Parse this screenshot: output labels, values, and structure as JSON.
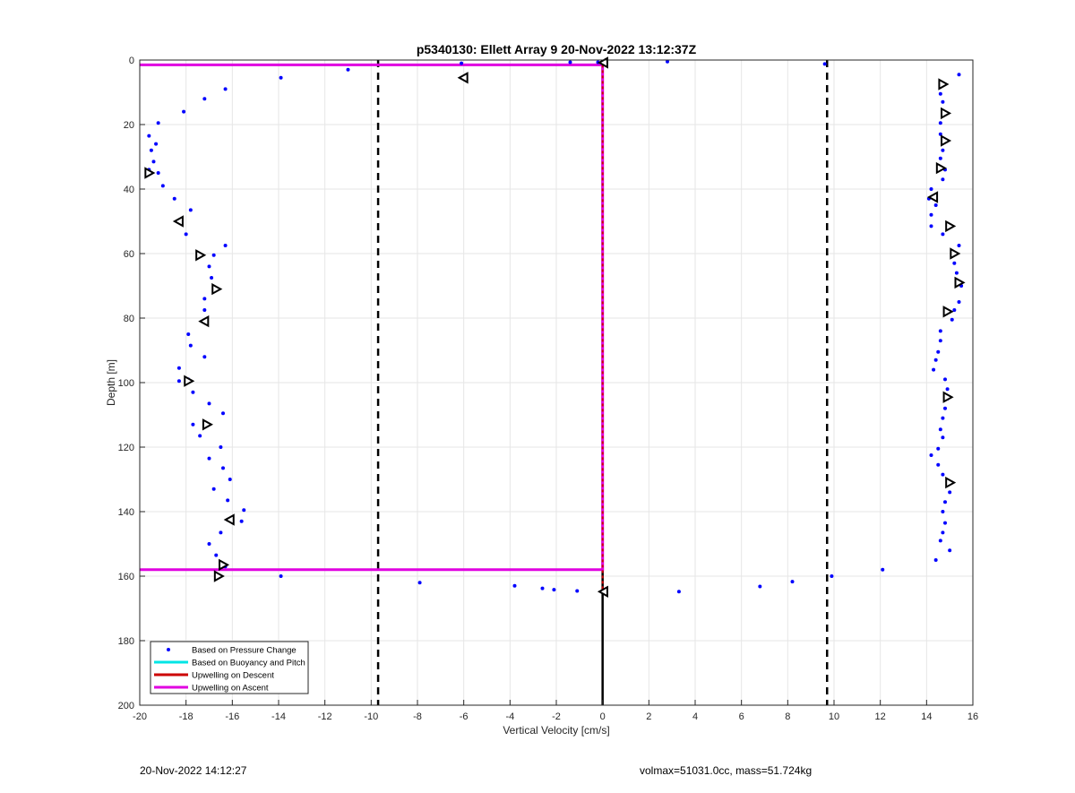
{
  "footer": {
    "left": "20-Nov-2022 14:12:27",
    "right": "volmax=51031.0cc, mass=51.724kg"
  },
  "chart_data": {
    "type": "scatter",
    "title": "p5340130: Ellett Array 9 20-Nov-2022 13:12:37Z",
    "xlabel": "Vertical Velocity [cm/s]",
    "ylabel": "Depth [m]",
    "xlim": [
      -20,
      16
    ],
    "ylim": [
      0,
      200
    ],
    "y_reversed": true,
    "grid": true,
    "xticks": [
      "-20",
      "-18",
      "-16",
      "-14",
      "-12",
      "-10",
      "-8",
      "-6",
      "-4",
      "-2",
      "0",
      "2",
      "4",
      "6",
      "8",
      "10",
      "12",
      "14",
      "16"
    ],
    "yticks": [
      "0",
      "20",
      "40",
      "60",
      "80",
      "100",
      "120",
      "140",
      "160",
      "180",
      "200"
    ],
    "legend": {
      "placement": "bottom-left",
      "entries": [
        {
          "label": "Based on Pressure Change",
          "color": "#0000ff",
          "style": "dot"
        },
        {
          "label": "Based on Buoyancy and Pitch",
          "color": "#00e5e5",
          "style": "line"
        },
        {
          "label": "Upwelling on Descent",
          "color": "#cc0000",
          "style": "line"
        },
        {
          "label": "Upwelling on Ascent",
          "color": "#e000e0",
          "style": "line"
        }
      ]
    },
    "reference_lines": {
      "dashed_x": [
        -9.7,
        9.7
      ],
      "black_vertical_x": 0
    },
    "series": [
      {
        "name": "Based on Pressure Change",
        "color": "#0000ff",
        "points": [
          [
            -16.3,
            9
          ],
          [
            -17.2,
            12
          ],
          [
            -18.1,
            16
          ],
          [
            -19.2,
            19.5
          ],
          [
            -19.3,
            26
          ],
          [
            -19.6,
            23.5
          ],
          [
            -19.5,
            28
          ],
          [
            -19.4,
            31.5
          ],
          [
            -19.6,
            34
          ],
          [
            -19.2,
            35
          ],
          [
            -19,
            39
          ],
          [
            -18.5,
            43
          ],
          [
            -17.8,
            46.5
          ],
          [
            -18.3,
            50
          ],
          [
            -18,
            54
          ],
          [
            -16.3,
            57.5
          ],
          [
            -17.4,
            60.5
          ],
          [
            -16.8,
            60.5
          ],
          [
            -17,
            64
          ],
          [
            -16.9,
            67.5
          ],
          [
            -16.7,
            71
          ],
          [
            -17.2,
            74
          ],
          [
            -17.2,
            77.5
          ],
          [
            -17.2,
            81
          ],
          [
            -17.9,
            85
          ],
          [
            -17.8,
            88.5
          ],
          [
            -17.2,
            92
          ],
          [
            -18.3,
            95.5
          ],
          [
            -17.9,
            99
          ],
          [
            -18.3,
            99.5
          ],
          [
            -17.7,
            103
          ],
          [
            -17,
            106.5
          ],
          [
            -16.4,
            109.5
          ],
          [
            -17.2,
            113
          ],
          [
            -17.7,
            113
          ],
          [
            -17.4,
            116.5
          ],
          [
            -16.5,
            120
          ],
          [
            -17,
            123.5
          ],
          [
            -16.4,
            126.5
          ],
          [
            -16.1,
            130
          ],
          [
            -16.8,
            133
          ],
          [
            -16.2,
            136.5
          ],
          [
            -15.5,
            139.5
          ],
          [
            -15.6,
            143
          ],
          [
            -16.2,
            142.5
          ],
          [
            -16.5,
            146.5
          ],
          [
            -17,
            150
          ],
          [
            -16.7,
            153.5
          ],
          [
            -16.3,
            157
          ],
          [
            -16.6,
            160
          ],
          [
            -13.9,
            160
          ],
          [
            -13.9,
            5.5
          ],
          [
            -11,
            3
          ],
          [
            -6.1,
            1
          ],
          [
            -1.4,
            0.7
          ],
          [
            -0.2,
            0.7
          ],
          [
            2.8,
            0.5
          ],
          [
            9.6,
            1.2
          ],
          [
            15.4,
            4.5
          ],
          [
            14.7,
            7.5
          ],
          [
            14.6,
            10.5
          ],
          [
            14.7,
            13
          ],
          [
            14.7,
            16.5
          ],
          [
            14.6,
            19.5
          ],
          [
            14.6,
            23
          ],
          [
            14.7,
            25.5
          ],
          [
            14.7,
            28
          ],
          [
            14.6,
            30.5
          ],
          [
            14.5,
            33.5
          ],
          [
            14.8,
            34
          ],
          [
            14.7,
            37
          ],
          [
            14.2,
            40
          ],
          [
            14.1,
            43
          ],
          [
            14.4,
            45
          ],
          [
            14.2,
            48
          ],
          [
            14.2,
            51.5
          ],
          [
            14.7,
            54
          ],
          [
            15.4,
            57.5
          ],
          [
            15.1,
            60.5
          ],
          [
            15.2,
            63
          ],
          [
            15.3,
            66
          ],
          [
            15.5,
            70
          ],
          [
            15.4,
            75
          ],
          [
            15.2,
            77.5
          ],
          [
            14.9,
            78
          ],
          [
            15.1,
            80.5
          ],
          [
            14.6,
            84
          ],
          [
            14.6,
            87
          ],
          [
            14.5,
            90.5
          ],
          [
            14.4,
            93
          ],
          [
            14.3,
            96
          ],
          [
            14.8,
            99
          ],
          [
            14.9,
            102
          ],
          [
            14.9,
            105
          ],
          [
            14.8,
            108
          ],
          [
            14.7,
            111
          ],
          [
            14.6,
            114.5
          ],
          [
            14.7,
            117
          ],
          [
            14.5,
            120.5
          ],
          [
            14.2,
            122.5
          ],
          [
            14.5,
            125.5
          ],
          [
            14.7,
            128.5
          ],
          [
            14.9,
            131
          ],
          [
            15,
            134
          ],
          [
            14.8,
            137
          ],
          [
            14.7,
            140
          ],
          [
            14.8,
            143.5
          ],
          [
            14.7,
            146.5
          ],
          [
            14.6,
            149
          ],
          [
            15,
            152
          ],
          [
            14.4,
            155
          ],
          [
            12.1,
            158
          ],
          [
            9.9,
            160
          ],
          [
            -7.9,
            162
          ],
          [
            -3.8,
            163
          ],
          [
            -2.6,
            163.8
          ],
          [
            -2.1,
            164.2
          ],
          [
            -1.1,
            164.6
          ],
          [
            3.3,
            164.8
          ],
          [
            6.8,
            163.2
          ],
          [
            8.2,
            161.7
          ]
        ]
      },
      {
        "name": "Triangle markers",
        "color": "#000000",
        "points": [
          [
            -19.6,
            35,
            "right"
          ],
          [
            -18.3,
            50,
            "left"
          ],
          [
            -17.4,
            60.5,
            "right"
          ],
          [
            -16.7,
            71,
            "right"
          ],
          [
            -17.2,
            81,
            "left"
          ],
          [
            -17.9,
            99.5,
            "right"
          ],
          [
            -17.1,
            113,
            "right"
          ],
          [
            -16.1,
            142.5,
            "left"
          ],
          [
            -16.4,
            156.5,
            "right"
          ],
          [
            -16.6,
            160,
            "right"
          ],
          [
            -6,
            5.5,
            "left"
          ],
          [
            0.05,
            0.8,
            "left"
          ],
          [
            14.7,
            7.5,
            "right"
          ],
          [
            14.8,
            16.5,
            "right"
          ],
          [
            14.8,
            25,
            "right"
          ],
          [
            14.6,
            33.5,
            "right"
          ],
          [
            14.3,
            42.5,
            "left"
          ],
          [
            15,
            51.5,
            "right"
          ],
          [
            15.2,
            60,
            "right"
          ],
          [
            15.4,
            69,
            "right"
          ],
          [
            14.9,
            78,
            "right"
          ],
          [
            14.9,
            104.5,
            "right"
          ],
          [
            15,
            131,
            "right"
          ],
          [
            0.05,
            164.8,
            "left"
          ]
        ]
      },
      {
        "name": "Upwelling on Ascent",
        "color": "#e000e0",
        "points": [
          [
            -20,
            1.5
          ],
          [
            0,
            1.5
          ],
          [
            0,
            158
          ],
          [
            -20,
            158
          ]
        ]
      },
      {
        "name": "Upwelling on Descent",
        "color": "#cc0000",
        "points": [
          [
            0,
            1.5
          ],
          [
            0,
            164.8
          ]
        ]
      }
    ]
  }
}
